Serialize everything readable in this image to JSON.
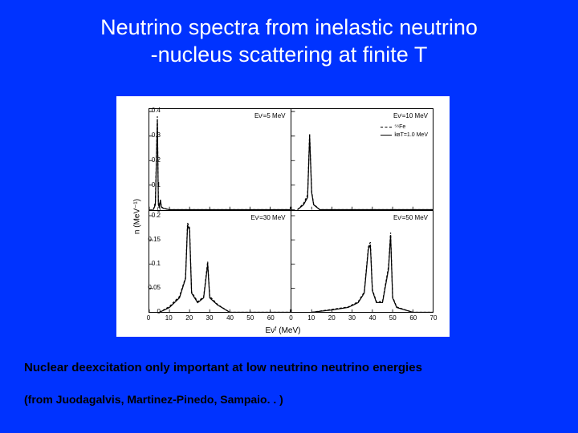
{
  "title": {
    "line1": "Neutrino spectra from inelastic neutrino",
    "line2": "-nucleus scattering at finite T",
    "fontsize": 27,
    "color": "#ffffff"
  },
  "figure": {
    "background": "#ffffff",
    "ylabel": "n (MeV⁻¹)",
    "xlabel": "Eνᶠ (MeV)",
    "top_row": {
      "ylim": [
        0,
        0.41
      ],
      "yticks": [
        0,
        0.1,
        0.2,
        0.3,
        0.4
      ],
      "xlim": [
        0,
        70
      ],
      "xticks": [
        0,
        10,
        20,
        30,
        40,
        50,
        60,
        70
      ]
    },
    "bottom_row": {
      "ylim": [
        0,
        0.21
      ],
      "yticks": [
        0,
        0.05,
        0.1,
        0.15,
        0.2
      ],
      "xlim": [
        0,
        70
      ],
      "xticks": [
        0,
        10,
        20,
        30,
        40,
        50,
        60,
        70
      ]
    },
    "line_color_solid": "#000000",
    "line_color_dash": "#000000",
    "line_width": 1.2,
    "panels": {
      "tl": {
        "label": "Eνⁱ=5 MeV",
        "solid": [
          [
            2,
            0
          ],
          [
            3,
            0.02
          ],
          [
            4,
            0.36
          ],
          [
            4.5,
            0.02
          ],
          [
            5,
            0.01
          ],
          [
            5.5,
            0.04
          ],
          [
            6,
            0.01
          ],
          [
            7,
            0.005
          ],
          [
            10,
            0
          ],
          [
            70,
            0
          ]
        ],
        "dash": [
          [
            2,
            0
          ],
          [
            3,
            0.03
          ],
          [
            4,
            0.38
          ],
          [
            4.5,
            0.03
          ],
          [
            5,
            0.015
          ],
          [
            5.5,
            0.04
          ],
          [
            6,
            0.012
          ],
          [
            7,
            0.006
          ],
          [
            10,
            0
          ],
          [
            70,
            0
          ]
        ]
      },
      "tr": {
        "label": "Eνⁱ=10 MeV",
        "legend": {
          "dash_label": "⁵⁶Fe",
          "solid_label": "kʙT=1.0 MeV"
        },
        "solid": [
          [
            3,
            0
          ],
          [
            6,
            0.02
          ],
          [
            8,
            0.05
          ],
          [
            9,
            0.3
          ],
          [
            10,
            0.07
          ],
          [
            11,
            0.02
          ],
          [
            14,
            0
          ],
          [
            70,
            0
          ]
        ],
        "dash": [
          [
            3,
            0
          ],
          [
            6,
            0.025
          ],
          [
            8,
            0.06
          ],
          [
            9,
            0.31
          ],
          [
            10,
            0.075
          ],
          [
            11,
            0.022
          ],
          [
            14,
            0
          ],
          [
            70,
            0
          ]
        ]
      },
      "bl": {
        "label": "Eνⁱ=30 MeV",
        "solid": [
          [
            5,
            0
          ],
          [
            10,
            0.01
          ],
          [
            15,
            0.03
          ],
          [
            18,
            0.07
          ],
          [
            19,
            0.18
          ],
          [
            20,
            0.17
          ],
          [
            21,
            0.04
          ],
          [
            24,
            0.02
          ],
          [
            27,
            0.03
          ],
          [
            29,
            0.1
          ],
          [
            30,
            0.03
          ],
          [
            34,
            0.015
          ],
          [
            40,
            0
          ],
          [
            70,
            0
          ]
        ],
        "dash": [
          [
            5,
            0
          ],
          [
            10,
            0.012
          ],
          [
            15,
            0.033
          ],
          [
            18,
            0.072
          ],
          [
            19,
            0.185
          ],
          [
            20,
            0.175
          ],
          [
            21,
            0.042
          ],
          [
            24,
            0.022
          ],
          [
            27,
            0.032
          ],
          [
            29,
            0.105
          ],
          [
            30,
            0.033
          ],
          [
            34,
            0.016
          ],
          [
            40,
            0
          ],
          [
            70,
            0
          ]
        ]
      },
      "br": {
        "label": "Eνⁱ=50 MeV",
        "solid": [
          [
            10,
            0
          ],
          [
            20,
            0.005
          ],
          [
            28,
            0.01
          ],
          [
            33,
            0.02
          ],
          [
            36,
            0.04
          ],
          [
            38,
            0.13
          ],
          [
            39,
            0.14
          ],
          [
            40,
            0.045
          ],
          [
            42,
            0.02
          ],
          [
            45,
            0.02
          ],
          [
            48,
            0.09
          ],
          [
            49,
            0.16
          ],
          [
            50,
            0.03
          ],
          [
            52,
            0.01
          ],
          [
            60,
            0
          ],
          [
            70,
            0
          ]
        ],
        "dash": [
          [
            10,
            0
          ],
          [
            20,
            0.006
          ],
          [
            28,
            0.011
          ],
          [
            33,
            0.022
          ],
          [
            36,
            0.042
          ],
          [
            38,
            0.135
          ],
          [
            39,
            0.145
          ],
          [
            40,
            0.047
          ],
          [
            42,
            0.022
          ],
          [
            45,
            0.022
          ],
          [
            48,
            0.095
          ],
          [
            49,
            0.165
          ],
          [
            50,
            0.032
          ],
          [
            52,
            0.011
          ],
          [
            60,
            0
          ],
          [
            70,
            0
          ]
        ]
      }
    }
  },
  "caption": {
    "line1": "Nuclear deexcitation only important at low neutrino neutrino energies",
    "line2": "(from Juodagalvis, Martinez-Pinedo, Sampaio. . )"
  }
}
